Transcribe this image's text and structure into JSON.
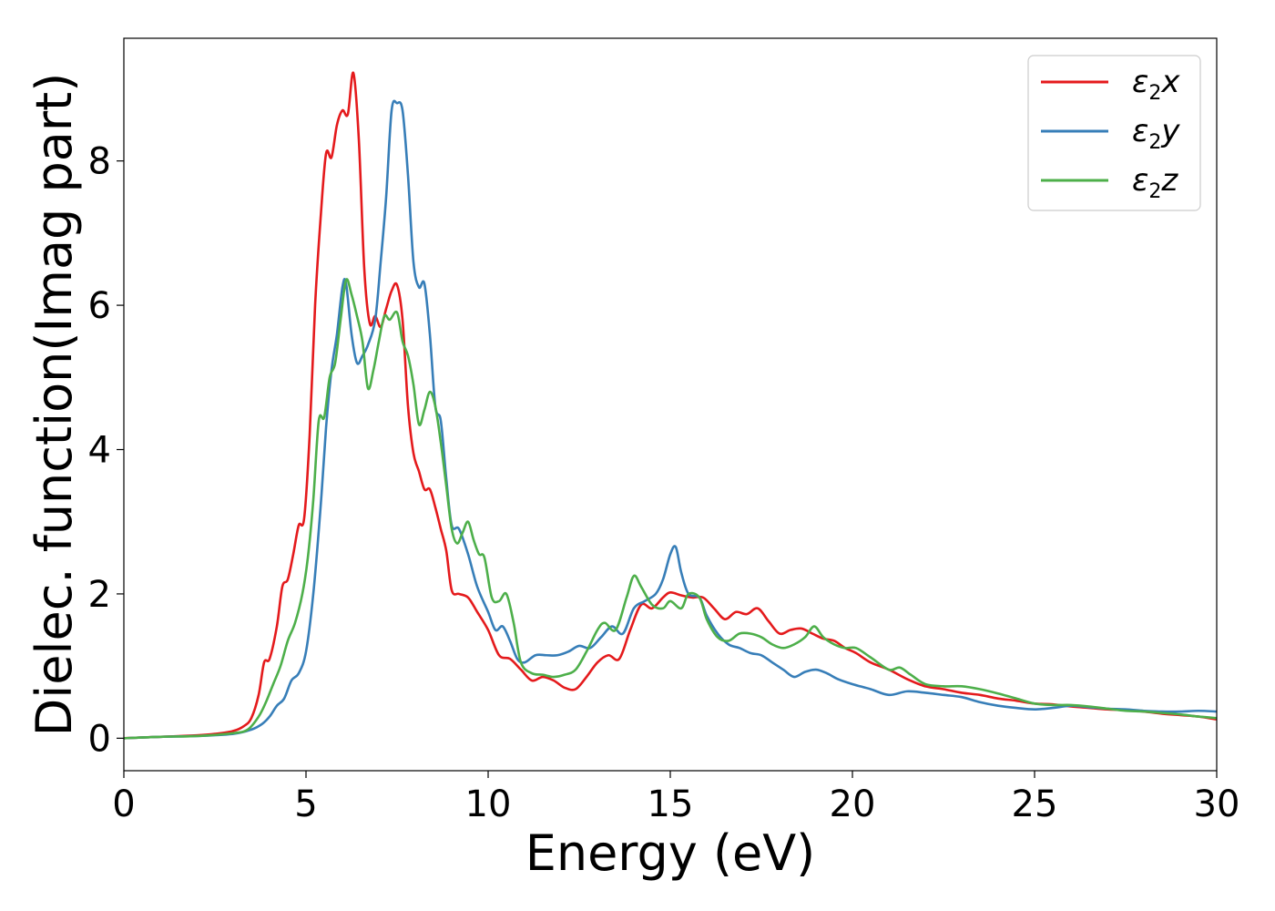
{
  "chart_data": {
    "type": "line",
    "xlabel": "Energy (eV)",
    "ylabel": "Dielec. function(Imag part)",
    "xlim": [
      0,
      30
    ],
    "ylim": [
      -0.45,
      9.7
    ],
    "xticks": [
      0,
      5,
      10,
      15,
      20,
      25,
      30
    ],
    "yticks": [
      0,
      2,
      4,
      6,
      8
    ],
    "grid": false,
    "legend_position": "top-right",
    "series": [
      {
        "name": "ε2x",
        "legend_main": "ε",
        "legend_sub": "2",
        "legend_suffix": "x",
        "color": "#e41a1c",
        "points": [
          [
            0,
            0
          ],
          [
            1,
            0.02
          ],
          [
            2,
            0.04
          ],
          [
            2.5,
            0.06
          ],
          [
            3,
            0.1
          ],
          [
            3.3,
            0.17
          ],
          [
            3.5,
            0.28
          ],
          [
            3.7,
            0.6
          ],
          [
            3.85,
            1.05
          ],
          [
            4.0,
            1.1
          ],
          [
            4.2,
            1.55
          ],
          [
            4.35,
            2.1
          ],
          [
            4.5,
            2.2
          ],
          [
            4.65,
            2.55
          ],
          [
            4.8,
            2.95
          ],
          [
            4.95,
            3.05
          ],
          [
            5.1,
            4.2
          ],
          [
            5.25,
            6.0
          ],
          [
            5.4,
            7.2
          ],
          [
            5.55,
            8.1
          ],
          [
            5.7,
            8.05
          ],
          [
            5.85,
            8.5
          ],
          [
            6.0,
            8.7
          ],
          [
            6.15,
            8.65
          ],
          [
            6.3,
            9.22
          ],
          [
            6.45,
            8.3
          ],
          [
            6.6,
            6.5
          ],
          [
            6.75,
            5.75
          ],
          [
            6.9,
            5.85
          ],
          [
            7.05,
            5.7
          ],
          [
            7.2,
            5.95
          ],
          [
            7.35,
            6.2
          ],
          [
            7.5,
            6.28
          ],
          [
            7.65,
            5.8
          ],
          [
            7.8,
            4.6
          ],
          [
            7.95,
            3.95
          ],
          [
            8.1,
            3.7
          ],
          [
            8.25,
            3.45
          ],
          [
            8.4,
            3.45
          ],
          [
            8.55,
            3.2
          ],
          [
            8.7,
            2.9
          ],
          [
            8.85,
            2.6
          ],
          [
            9.0,
            2.05
          ],
          [
            9.2,
            2.0
          ],
          [
            9.45,
            1.95
          ],
          [
            9.7,
            1.75
          ],
          [
            10.0,
            1.5
          ],
          [
            10.3,
            1.15
          ],
          [
            10.6,
            1.1
          ],
          [
            10.9,
            0.95
          ],
          [
            11.2,
            0.8
          ],
          [
            11.5,
            0.85
          ],
          [
            11.8,
            0.8
          ],
          [
            12.1,
            0.7
          ],
          [
            12.4,
            0.68
          ],
          [
            12.7,
            0.85
          ],
          [
            13.0,
            1.05
          ],
          [
            13.3,
            1.15
          ],
          [
            13.6,
            1.1
          ],
          [
            13.9,
            1.5
          ],
          [
            14.2,
            1.85
          ],
          [
            14.5,
            1.8
          ],
          [
            14.8,
            1.95
          ],
          [
            15.0,
            2.02
          ],
          [
            15.3,
            1.98
          ],
          [
            15.6,
            1.95
          ],
          [
            15.9,
            1.95
          ],
          [
            16.2,
            1.8
          ],
          [
            16.5,
            1.65
          ],
          [
            16.8,
            1.75
          ],
          [
            17.1,
            1.72
          ],
          [
            17.4,
            1.8
          ],
          [
            17.7,
            1.62
          ],
          [
            18.0,
            1.45
          ],
          [
            18.3,
            1.5
          ],
          [
            18.6,
            1.52
          ],
          [
            18.9,
            1.45
          ],
          [
            19.2,
            1.38
          ],
          [
            19.5,
            1.35
          ],
          [
            19.8,
            1.25
          ],
          [
            20.1,
            1.18
          ],
          [
            20.5,
            1.05
          ],
          [
            21.0,
            0.95
          ],
          [
            21.5,
            0.82
          ],
          [
            22.0,
            0.72
          ],
          [
            22.5,
            0.68
          ],
          [
            23.0,
            0.63
          ],
          [
            23.5,
            0.6
          ],
          [
            24.0,
            0.55
          ],
          [
            24.5,
            0.52
          ],
          [
            25.0,
            0.48
          ],
          [
            25.5,
            0.47
          ],
          [
            26.0,
            0.44
          ],
          [
            26.5,
            0.42
          ],
          [
            27.0,
            0.4
          ],
          [
            27.5,
            0.39
          ],
          [
            28.0,
            0.37
          ],
          [
            28.5,
            0.34
          ],
          [
            29.0,
            0.32
          ],
          [
            29.5,
            0.3
          ],
          [
            30.0,
            0.26
          ]
        ]
      },
      {
        "name": "ε2y",
        "legend_main": "ε",
        "legend_sub": "2",
        "legend_suffix": "y",
        "color": "#377eb8",
        "points": [
          [
            0,
            0
          ],
          [
            1,
            0.02
          ],
          [
            2,
            0.03
          ],
          [
            3,
            0.06
          ],
          [
            3.5,
            0.12
          ],
          [
            3.8,
            0.2
          ],
          [
            4.0,
            0.3
          ],
          [
            4.2,
            0.45
          ],
          [
            4.4,
            0.55
          ],
          [
            4.6,
            0.8
          ],
          [
            4.8,
            0.9
          ],
          [
            5.0,
            1.2
          ],
          [
            5.2,
            2.0
          ],
          [
            5.4,
            3.2
          ],
          [
            5.55,
            4.3
          ],
          [
            5.7,
            5.1
          ],
          [
            5.85,
            5.6
          ],
          [
            6.0,
            6.25
          ],
          [
            6.1,
            6.3
          ],
          [
            6.25,
            5.6
          ],
          [
            6.4,
            5.2
          ],
          [
            6.55,
            5.3
          ],
          [
            6.7,
            5.45
          ],
          [
            6.9,
            5.8
          ],
          [
            7.05,
            6.6
          ],
          [
            7.2,
            7.5
          ],
          [
            7.35,
            8.7
          ],
          [
            7.5,
            8.8
          ],
          [
            7.65,
            8.7
          ],
          [
            7.8,
            7.8
          ],
          [
            7.95,
            6.6
          ],
          [
            8.1,
            6.25
          ],
          [
            8.25,
            6.3
          ],
          [
            8.4,
            5.6
          ],
          [
            8.55,
            4.6
          ],
          [
            8.7,
            4.4
          ],
          [
            8.85,
            3.6
          ],
          [
            9.0,
            2.95
          ],
          [
            9.2,
            2.9
          ],
          [
            9.45,
            2.55
          ],
          [
            9.7,
            2.1
          ],
          [
            10.0,
            1.75
          ],
          [
            10.2,
            1.5
          ],
          [
            10.4,
            1.55
          ],
          [
            10.6,
            1.35
          ],
          [
            10.8,
            1.1
          ],
          [
            11.0,
            1.05
          ],
          [
            11.3,
            1.15
          ],
          [
            11.6,
            1.15
          ],
          [
            11.9,
            1.15
          ],
          [
            12.2,
            1.2
          ],
          [
            12.5,
            1.28
          ],
          [
            12.8,
            1.25
          ],
          [
            13.1,
            1.4
          ],
          [
            13.4,
            1.55
          ],
          [
            13.7,
            1.45
          ],
          [
            14.0,
            1.8
          ],
          [
            14.3,
            1.9
          ],
          [
            14.6,
            2.0
          ],
          [
            14.8,
            2.2
          ],
          [
            15.0,
            2.55
          ],
          [
            15.15,
            2.65
          ],
          [
            15.3,
            2.3
          ],
          [
            15.5,
            2.0
          ],
          [
            15.8,
            1.95
          ],
          [
            16.0,
            1.7
          ],
          [
            16.3,
            1.45
          ],
          [
            16.6,
            1.3
          ],
          [
            16.9,
            1.25
          ],
          [
            17.2,
            1.18
          ],
          [
            17.5,
            1.15
          ],
          [
            17.8,
            1.05
          ],
          [
            18.1,
            0.95
          ],
          [
            18.4,
            0.85
          ],
          [
            18.7,
            0.92
          ],
          [
            19.0,
            0.95
          ],
          [
            19.3,
            0.9
          ],
          [
            19.6,
            0.82
          ],
          [
            20.0,
            0.75
          ],
          [
            20.5,
            0.68
          ],
          [
            21.0,
            0.6
          ],
          [
            21.5,
            0.65
          ],
          [
            22.0,
            0.63
          ],
          [
            22.5,
            0.6
          ],
          [
            23.0,
            0.57
          ],
          [
            23.5,
            0.5
          ],
          [
            24.0,
            0.45
          ],
          [
            24.5,
            0.42
          ],
          [
            25.0,
            0.4
          ],
          [
            25.5,
            0.42
          ],
          [
            26.0,
            0.45
          ],
          [
            26.5,
            0.43
          ],
          [
            27.0,
            0.41
          ],
          [
            27.5,
            0.4
          ],
          [
            28.0,
            0.38
          ],
          [
            28.5,
            0.37
          ],
          [
            29.0,
            0.37
          ],
          [
            29.5,
            0.38
          ],
          [
            30.0,
            0.37
          ]
        ]
      },
      {
        "name": "ε2z",
        "legend_main": "ε",
        "legend_sub": "2",
        "legend_suffix": "z",
        "color": "#4daf4a",
        "points": [
          [
            0,
            0
          ],
          [
            1,
            0.02
          ],
          [
            2,
            0.03
          ],
          [
            3,
            0.07
          ],
          [
            3.4,
            0.12
          ],
          [
            3.7,
            0.3
          ],
          [
            3.9,
            0.5
          ],
          [
            4.1,
            0.75
          ],
          [
            4.3,
            1.0
          ],
          [
            4.5,
            1.35
          ],
          [
            4.7,
            1.6
          ],
          [
            4.9,
            2.0
          ],
          [
            5.05,
            2.5
          ],
          [
            5.2,
            3.3
          ],
          [
            5.35,
            4.4
          ],
          [
            5.5,
            4.45
          ],
          [
            5.65,
            5.0
          ],
          [
            5.8,
            5.2
          ],
          [
            5.95,
            5.8
          ],
          [
            6.1,
            6.35
          ],
          [
            6.25,
            6.15
          ],
          [
            6.4,
            5.85
          ],
          [
            6.55,
            5.5
          ],
          [
            6.7,
            4.85
          ],
          [
            6.85,
            5.1
          ],
          [
            7.0,
            5.5
          ],
          [
            7.15,
            5.85
          ],
          [
            7.3,
            5.8
          ],
          [
            7.5,
            5.9
          ],
          [
            7.65,
            5.5
          ],
          [
            7.8,
            5.3
          ],
          [
            7.95,
            4.9
          ],
          [
            8.1,
            4.35
          ],
          [
            8.25,
            4.55
          ],
          [
            8.4,
            4.8
          ],
          [
            8.55,
            4.6
          ],
          [
            8.7,
            4.1
          ],
          [
            8.85,
            3.5
          ],
          [
            9.0,
            2.9
          ],
          [
            9.15,
            2.7
          ],
          [
            9.3,
            2.85
          ],
          [
            9.45,
            3.0
          ],
          [
            9.6,
            2.75
          ],
          [
            9.75,
            2.55
          ],
          [
            9.9,
            2.5
          ],
          [
            10.1,
            1.95
          ],
          [
            10.3,
            1.9
          ],
          [
            10.5,
            2.0
          ],
          [
            10.7,
            1.6
          ],
          [
            10.9,
            1.05
          ],
          [
            11.2,
            0.9
          ],
          [
            11.5,
            0.88
          ],
          [
            11.8,
            0.85
          ],
          [
            12.1,
            0.88
          ],
          [
            12.4,
            0.95
          ],
          [
            12.7,
            1.2
          ],
          [
            13.0,
            1.5
          ],
          [
            13.2,
            1.6
          ],
          [
            13.5,
            1.5
          ],
          [
            13.8,
            1.95
          ],
          [
            14.0,
            2.25
          ],
          [
            14.2,
            2.1
          ],
          [
            14.5,
            1.85
          ],
          [
            14.8,
            1.8
          ],
          [
            15.0,
            1.9
          ],
          [
            15.3,
            1.8
          ],
          [
            15.5,
            2.0
          ],
          [
            15.8,
            1.95
          ],
          [
            16.0,
            1.65
          ],
          [
            16.3,
            1.4
          ],
          [
            16.6,
            1.35
          ],
          [
            16.9,
            1.45
          ],
          [
            17.2,
            1.45
          ],
          [
            17.5,
            1.4
          ],
          [
            17.8,
            1.3
          ],
          [
            18.1,
            1.25
          ],
          [
            18.4,
            1.3
          ],
          [
            18.7,
            1.4
          ],
          [
            18.95,
            1.55
          ],
          [
            19.2,
            1.4
          ],
          [
            19.5,
            1.3
          ],
          [
            19.8,
            1.25
          ],
          [
            20.1,
            1.25
          ],
          [
            20.5,
            1.12
          ],
          [
            21.0,
            0.95
          ],
          [
            21.3,
            0.98
          ],
          [
            21.6,
            0.88
          ],
          [
            22.0,
            0.75
          ],
          [
            22.5,
            0.72
          ],
          [
            23.0,
            0.72
          ],
          [
            23.5,
            0.68
          ],
          [
            24.0,
            0.62
          ],
          [
            24.5,
            0.55
          ],
          [
            25.0,
            0.48
          ],
          [
            25.5,
            0.46
          ],
          [
            26.0,
            0.46
          ],
          [
            26.5,
            0.44
          ],
          [
            27.0,
            0.41
          ],
          [
            27.5,
            0.38
          ],
          [
            28.0,
            0.37
          ],
          [
            28.5,
            0.35
          ],
          [
            29.0,
            0.33
          ],
          [
            29.5,
            0.3
          ],
          [
            30.0,
            0.28
          ]
        ]
      }
    ]
  }
}
